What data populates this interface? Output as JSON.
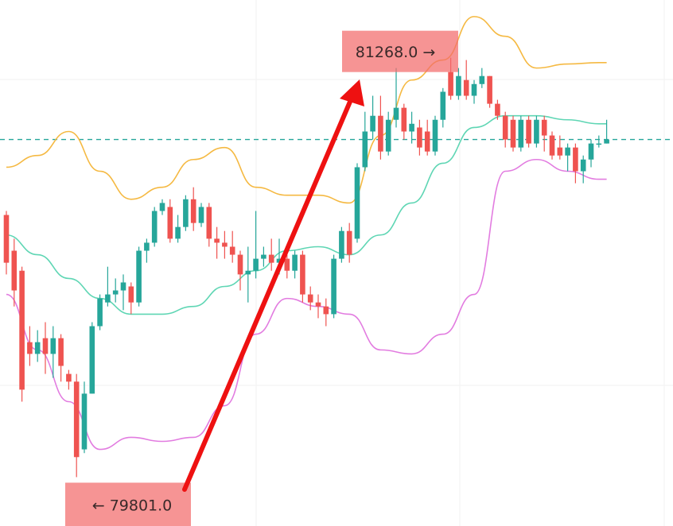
{
  "chart_data": {
    "type": "candlestick",
    "ylim": [
      79630,
      81470
    ],
    "up_color": "#26a69a",
    "down_color": "#ef5350",
    "open": [
      80718,
      80593,
      80523,
      80273,
      80232,
      80287,
      80232,
      80287,
      80162,
      80135,
      79898,
      80093,
      80329,
      80412,
      80440,
      80454,
      80468,
      80412,
      80593,
      80621,
      80732,
      80746,
      80635,
      80676,
      80773,
      80690,
      80746,
      80635,
      80621,
      80607,
      80579,
      80510,
      80523,
      80565,
      80579,
      80551,
      80565,
      80523,
      80579,
      80440,
      80412,
      80398,
      80371,
      80565,
      80662,
      80635,
      80885,
      81010,
      81065,
      80940,
      81051,
      81093,
      81010,
      81024,
      81010,
      80940,
      81051,
      81218,
      81135,
      81190,
      81135,
      81176,
      81204,
      81107,
      81065,
      81051,
      80954,
      81051,
      80968,
      81051,
      80996,
      80954,
      80926,
      80954,
      80871,
      80912,
      80968,
      80968
    ],
    "high": [
      80732,
      80635,
      80537,
      80329,
      80315,
      80343,
      80329,
      80301,
      80176,
      80162,
      80135,
      80343,
      80440,
      80537,
      80496,
      80510,
      80482,
      80607,
      80635,
      80746,
      80773,
      80773,
      80718,
      80787,
      80815,
      80760,
      80760,
      80676,
      80662,
      80662,
      80593,
      80607,
      80732,
      80607,
      80635,
      80635,
      80579,
      80593,
      80593,
      80468,
      80440,
      80426,
      80579,
      80676,
      80690,
      80899,
      81079,
      81135,
      81135,
      81079,
      81232,
      81107,
      81079,
      81051,
      81051,
      81065,
      81162,
      81268,
      81232,
      81260,
      81190,
      81232,
      81204,
      81121,
      81079,
      81065,
      81065,
      81065,
      81065,
      81065,
      81010,
      80996,
      80968,
      80968,
      80926,
      80982,
      80996,
      81051
    ],
    "low": [
      80510,
      80398,
      80065,
      80190,
      80204,
      80162,
      80148,
      80135,
      80107,
      79801,
      79885,
      80093,
      80315,
      80398,
      80412,
      80385,
      80371,
      80398,
      80551,
      80607,
      80718,
      80621,
      80621,
      80662,
      80662,
      80676,
      80607,
      80565,
      80565,
      80551,
      80454,
      80412,
      80496,
      80537,
      80523,
      80510,
      80496,
      80496,
      80412,
      80385,
      80357,
      80329,
      80357,
      80551,
      80551,
      80621,
      80871,
      80982,
      80912,
      80926,
      81024,
      80982,
      80968,
      80926,
      80926,
      80926,
      81024,
      81121,
      81121,
      81121,
      81107,
      81162,
      81093,
      81051,
      80954,
      80940,
      80940,
      80954,
      80954,
      80940,
      80912,
      80912,
      80871,
      80829,
      80829,
      80885,
      80954,
      80968
    ],
    "close": [
      80551,
      80454,
      80107,
      80232,
      80273,
      80232,
      80287,
      80190,
      80135,
      79871,
      80093,
      80329,
      80426,
      80440,
      80454,
      80482,
      80412,
      80593,
      80621,
      80732,
      80760,
      80635,
      80676,
      80773,
      80690,
      80746,
      80635,
      80621,
      80607,
      80579,
      80510,
      80523,
      80565,
      80579,
      80551,
      80565,
      80523,
      80579,
      80440,
      80412,
      80398,
      80371,
      80565,
      80662,
      80579,
      80885,
      81010,
      81065,
      80940,
      81051,
      81093,
      81010,
      81037,
      80954,
      80940,
      81051,
      81149,
      81135,
      81204,
      81135,
      81176,
      81204,
      81107,
      81065,
      80982,
      80954,
      81051,
      80968,
      81051,
      80996,
      80926,
      80926,
      80954,
      80871,
      80912,
      80968,
      80968,
      80982
    ],
    "bands": [
      {
        "color": "#f5b942",
        "x": [
          0,
          4,
          8,
          12,
          16,
          20,
          24,
          28,
          32,
          36,
          40,
          44,
          48,
          52,
          56,
          60,
          64,
          68,
          72,
          76,
          77
        ],
        "values": [
          80885,
          80926,
          81010,
          80871,
          80773,
          80815,
          80912,
          80954,
          80815,
          80787,
          80787,
          80760,
          80996,
          81190,
          81260,
          81412,
          81343,
          81232,
          81246,
          81251,
          81251
        ]
      },
      {
        "color": "#5fd6b4",
        "x": [
          0,
          4,
          8,
          12,
          16,
          20,
          24,
          28,
          32,
          36,
          40,
          44,
          48,
          52,
          56,
          60,
          64,
          68,
          72,
          76,
          77
        ],
        "values": [
          80648,
          80579,
          80496,
          80426,
          80371,
          80371,
          80398,
          80468,
          80523,
          80593,
          80607,
          80579,
          80648,
          80760,
          80899,
          81024,
          81065,
          81065,
          81051,
          81037,
          81037
        ]
      },
      {
        "color": "#e27ce0",
        "x": [
          0,
          4,
          8,
          12,
          16,
          20,
          24,
          28,
          32,
          36,
          40,
          44,
          48,
          52,
          56,
          60,
          64,
          68,
          72,
          76,
          77
        ],
        "values": [
          80440,
          80246,
          80065,
          79898,
          79940,
          79926,
          79940,
          80051,
          80301,
          80426,
          80398,
          80371,
          80246,
          80232,
          80301,
          80440,
          80871,
          80912,
          80871,
          80843,
          80843
        ]
      }
    ],
    "price_line": 80982,
    "price_line_color": "#26a69a",
    "annotations": [
      {
        "label": "81268.0 →",
        "value": 81268
      },
      {
        "label": "← 79801.0",
        "value": 79801
      }
    ]
  }
}
